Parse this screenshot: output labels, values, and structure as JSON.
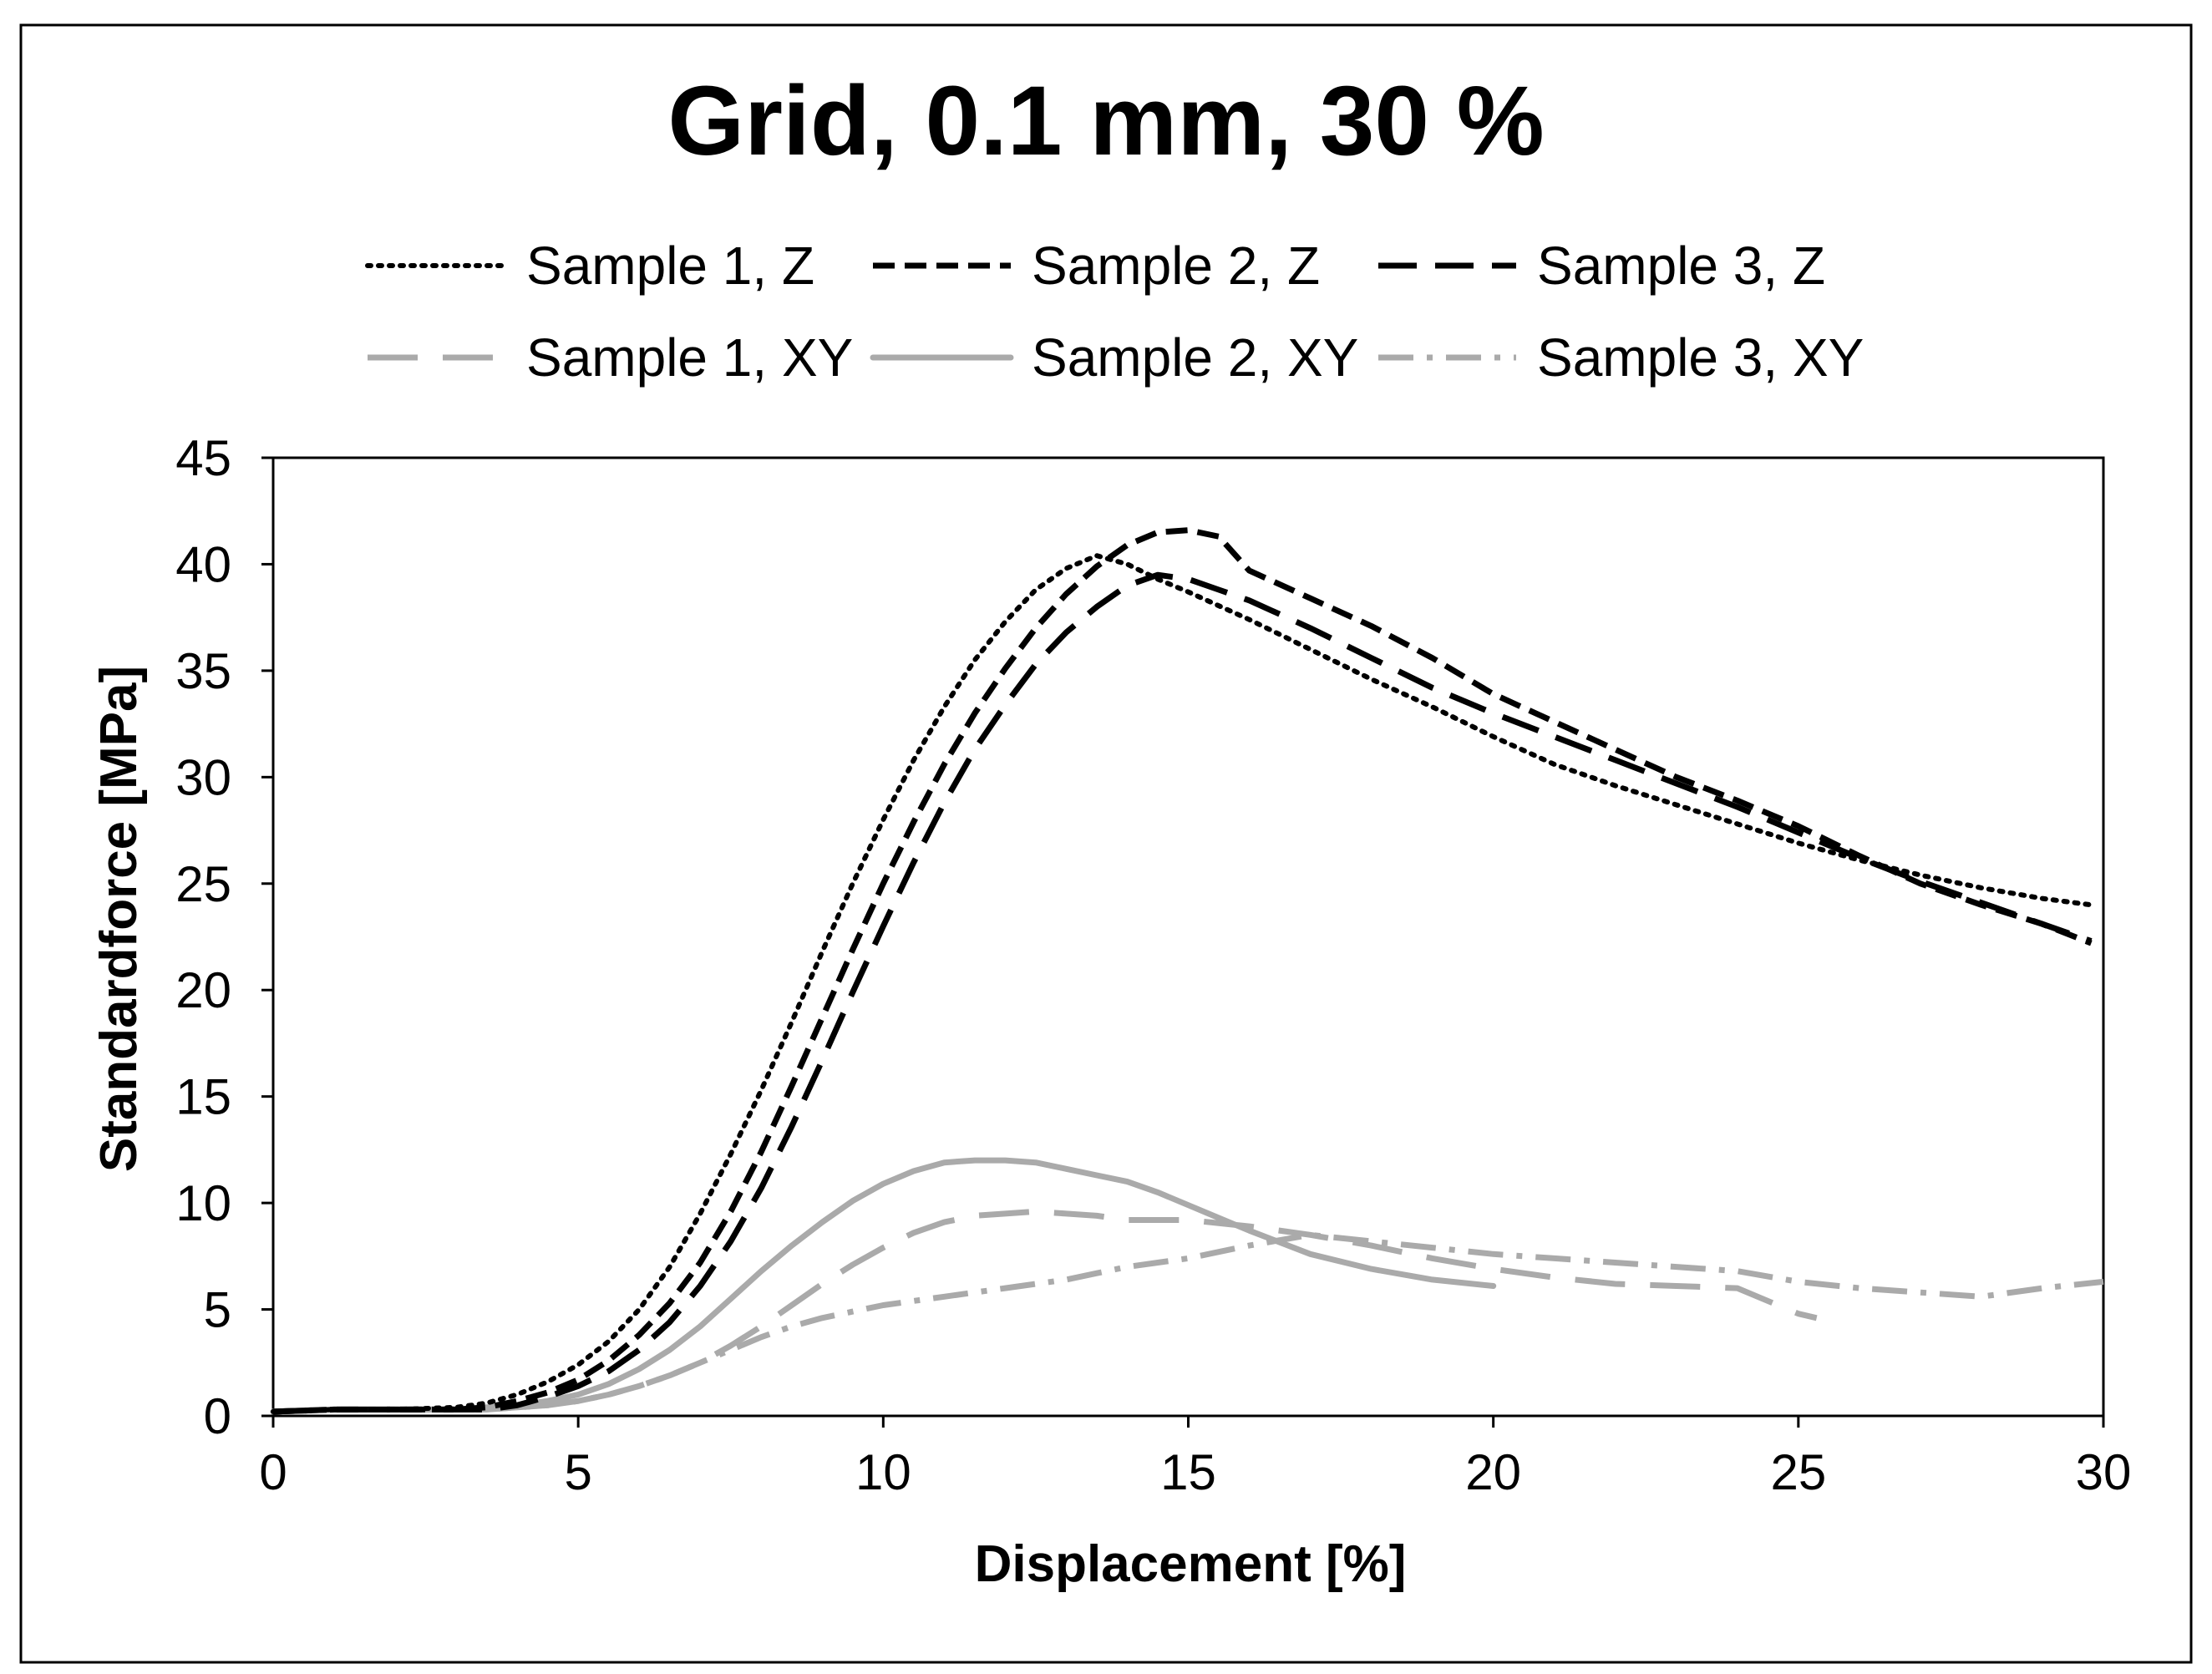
{
  "chart_data": {
    "type": "line",
    "title": "Grid, 0.1 mm, 30 %",
    "xlabel": "Displacement [%]",
    "ylabel": "Standardforce [MPa]",
    "xlim": [
      0,
      30
    ],
    "ylim": [
      0,
      45
    ],
    "xticks": [
      0,
      5,
      10,
      15,
      20,
      25,
      30
    ],
    "yticks": [
      0,
      5,
      10,
      15,
      20,
      25,
      30,
      35,
      40,
      45
    ],
    "grid": false,
    "legend_position": "top",
    "series": [
      {
        "name": "Sample 1, Z",
        "color": "#000000",
        "style": "dotted",
        "x": [
          0,
          1,
          2,
          3,
          3.5,
          4,
          4.5,
          5,
          5.5,
          6,
          6.5,
          7,
          7.5,
          8,
          8.5,
          9,
          9.5,
          10,
          10.5,
          11,
          11.5,
          12,
          12.5,
          13,
          13.5,
          14,
          14.5,
          15,
          16,
          17,
          18,
          19,
          20,
          21,
          22,
          23,
          24,
          25,
          26,
          27,
          28,
          29,
          29.8
        ],
        "y": [
          0.2,
          0.3,
          0.3,
          0.4,
          0.6,
          1.0,
          1.6,
          2.4,
          3.5,
          5.0,
          7.0,
          9.5,
          12.3,
          15.3,
          18.5,
          21.8,
          25.0,
          28.0,
          30.8,
          33.3,
          35.5,
          37.3,
          38.8,
          39.8,
          40.4,
          40.0,
          39.3,
          38.7,
          37.4,
          36.0,
          34.6,
          33.3,
          31.9,
          30.6,
          29.6,
          28.7,
          27.8,
          26.9,
          26.1,
          25.4,
          24.8,
          24.3,
          24.0
        ]
      },
      {
        "name": "Sample 2, Z",
        "color": "#000000",
        "style": "short-dash",
        "x": [
          0,
          1,
          2,
          3,
          3.5,
          4,
          4.5,
          5,
          5.5,
          6,
          6.5,
          7,
          7.5,
          8,
          8.5,
          9,
          9.5,
          10,
          10.5,
          11,
          11.5,
          12,
          12.5,
          13,
          13.5,
          14,
          14.5,
          15,
          15.5,
          16,
          17,
          18,
          19,
          20,
          21,
          22,
          23,
          24,
          25,
          26,
          27,
          28,
          29,
          29.8
        ],
        "y": [
          0.2,
          0.3,
          0.3,
          0.3,
          0.4,
          0.7,
          1.1,
          1.7,
          2.6,
          3.8,
          5.3,
          7.2,
          9.6,
          12.4,
          15.5,
          18.7,
          21.9,
          25.0,
          27.9,
          30.6,
          33.0,
          35.1,
          37.0,
          38.6,
          39.9,
          40.9,
          41.5,
          41.6,
          41.3,
          39.7,
          38.4,
          37.1,
          35.6,
          33.9,
          32.6,
          31.3,
          30.0,
          28.9,
          27.7,
          26.3,
          25.0,
          24.0,
          23.1,
          22.2
        ]
      },
      {
        "name": "Sample 3, Z",
        "color": "#000000",
        "style": "long-dash",
        "x": [
          0,
          1,
          2,
          3,
          3.5,
          4,
          4.5,
          5,
          5.5,
          6,
          6.5,
          7,
          7.5,
          8,
          8.5,
          9,
          9.5,
          10,
          10.5,
          11,
          11.5,
          12,
          12.5,
          13,
          13.5,
          14,
          14.5,
          15,
          15.5,
          16,
          17,
          18,
          19,
          20,
          21,
          22,
          23,
          24,
          25,
          26,
          27,
          28,
          29,
          29.8
        ],
        "y": [
          0.2,
          0.3,
          0.3,
          0.3,
          0.3,
          0.5,
          0.9,
          1.4,
          2.1,
          3.1,
          4.4,
          6.1,
          8.2,
          10.7,
          13.6,
          16.7,
          19.9,
          23.0,
          26.0,
          28.8,
          31.3,
          33.4,
          35.3,
          36.8,
          38.0,
          39.0,
          39.5,
          39.3,
          38.8,
          38.3,
          37.0,
          35.6,
          34.2,
          33.0,
          31.9,
          30.8,
          29.7,
          28.6,
          27.4,
          26.2,
          25.1,
          24.1,
          23.1,
          22.3
        ]
      },
      {
        "name": "Sample 1, XY",
        "color": "#aaaaaa",
        "style": "long-gap-dash",
        "x": [
          0,
          1,
          2,
          3,
          3.5,
          4,
          4.5,
          5,
          5.5,
          6,
          6.5,
          7,
          7.5,
          8,
          8.5,
          9,
          9.5,
          10,
          10.5,
          11,
          11.5,
          12,
          12.5,
          13,
          13.5,
          14,
          15,
          16,
          17,
          18,
          19,
          20,
          21,
          22,
          23,
          24,
          25,
          25.3
        ],
        "y": [
          0.2,
          0.3,
          0.3,
          0.3,
          0.3,
          0.4,
          0.5,
          0.7,
          1.0,
          1.4,
          1.9,
          2.5,
          3.3,
          4.2,
          5.2,
          6.2,
          7.1,
          7.9,
          8.6,
          9.1,
          9.4,
          9.5,
          9.6,
          9.5,
          9.4,
          9.2,
          9.2,
          8.9,
          8.5,
          8.0,
          7.4,
          6.9,
          6.5,
          6.2,
          6.1,
          6.0,
          4.8,
          4.6
        ]
      },
      {
        "name": "Sample 2, XY",
        "color": "#aaaaaa",
        "style": "solid",
        "x": [
          0,
          1,
          2,
          3,
          3.5,
          4,
          4.5,
          5,
          5.5,
          6,
          6.5,
          7,
          7.5,
          8,
          8.5,
          9,
          9.5,
          10,
          10.5,
          11,
          11.5,
          12,
          12.5,
          13,
          13.5,
          14,
          14.5,
          15,
          15.5,
          16,
          17,
          18,
          19,
          20
        ],
        "y": [
          0.2,
          0.3,
          0.3,
          0.3,
          0.4,
          0.5,
          0.7,
          1.0,
          1.5,
          2.2,
          3.1,
          4.2,
          5.5,
          6.8,
          8.0,
          9.1,
          10.1,
          10.9,
          11.5,
          11.9,
          12.0,
          12.0,
          11.9,
          11.6,
          11.3,
          11.0,
          10.5,
          9.9,
          9.3,
          8.7,
          7.6,
          6.9,
          6.4,
          6.1
        ]
      },
      {
        "name": "Sample 3, XY",
        "color": "#aaaaaa",
        "style": "dash-dot",
        "x": [
          0,
          1,
          2,
          3,
          3.5,
          4,
          4.5,
          5,
          5.5,
          6,
          6.5,
          7,
          7.5,
          8,
          8.5,
          9,
          9.5,
          10,
          10.5,
          11,
          11.5,
          12,
          12.5,
          13,
          13.5,
          14,
          14.5,
          15,
          15.5,
          16,
          17,
          18,
          19,
          20,
          21,
          22,
          23,
          24,
          25,
          26,
          27,
          28,
          29,
          30
        ],
        "y": [
          0.2,
          0.3,
          0.3,
          0.3,
          0.3,
          0.4,
          0.5,
          0.7,
          1.0,
          1.4,
          1.9,
          2.5,
          3.1,
          3.7,
          4.2,
          4.6,
          4.9,
          5.2,
          5.4,
          5.6,
          5.8,
          6.0,
          6.2,
          6.4,
          6.7,
          7.0,
          7.2,
          7.4,
          7.7,
          8.0,
          8.5,
          8.2,
          7.9,
          7.6,
          7.4,
          7.2,
          7.0,
          6.8,
          6.3,
          6.0,
          5.8,
          5.6,
          6.0,
          6.3
        ]
      }
    ]
  }
}
